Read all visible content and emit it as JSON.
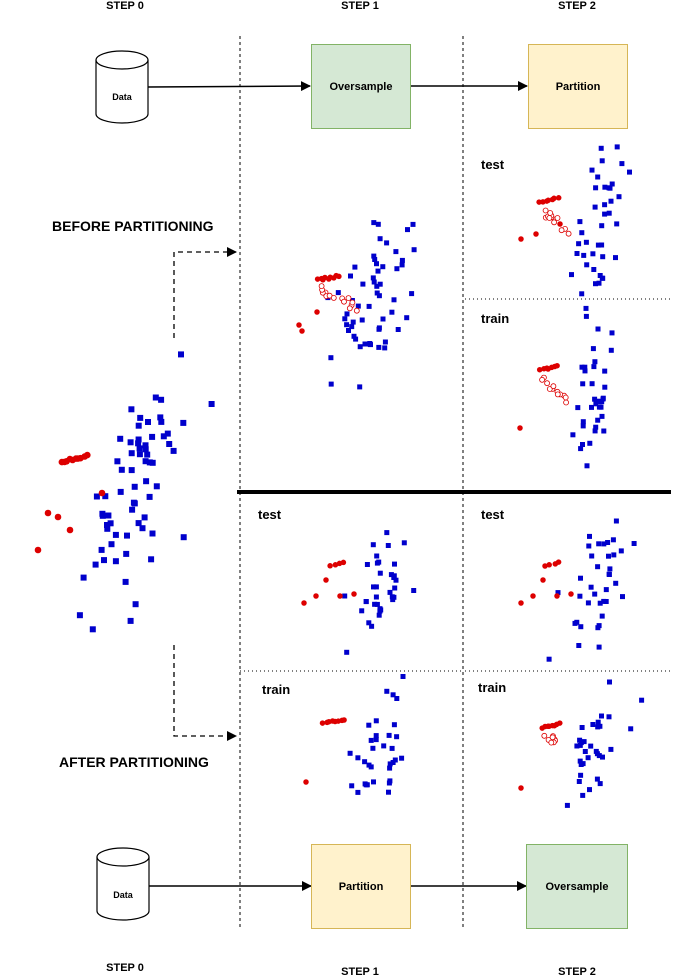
{
  "steps": {
    "top": [
      "STEP 0",
      "STEP 1",
      "STEP 2"
    ],
    "bottom": [
      "STEP 0",
      "STEP 1",
      "STEP 2"
    ]
  },
  "top_flow": {
    "database_label": "Data",
    "step1_box": "Oversample",
    "step2_box": "Partition"
  },
  "bottom_flow": {
    "database_label": "Data",
    "step1_box": "Partition",
    "step2_box": "Oversample"
  },
  "sections": {
    "before": "BEFORE PARTITIONING",
    "after": "AFTER PARTITIONING"
  },
  "panels": {
    "before_step2_top": "test",
    "before_step2_bottom": "train",
    "after_step1_top": "test",
    "after_step1_bottom": "train",
    "after_step2_top": "test",
    "after_step2_bottom": "train"
  },
  "colors": {
    "majority": "#0000cc",
    "minority": "#dd0000",
    "oversample_box": "#d5e8d4",
    "partition_box": "#fff2cc"
  }
}
